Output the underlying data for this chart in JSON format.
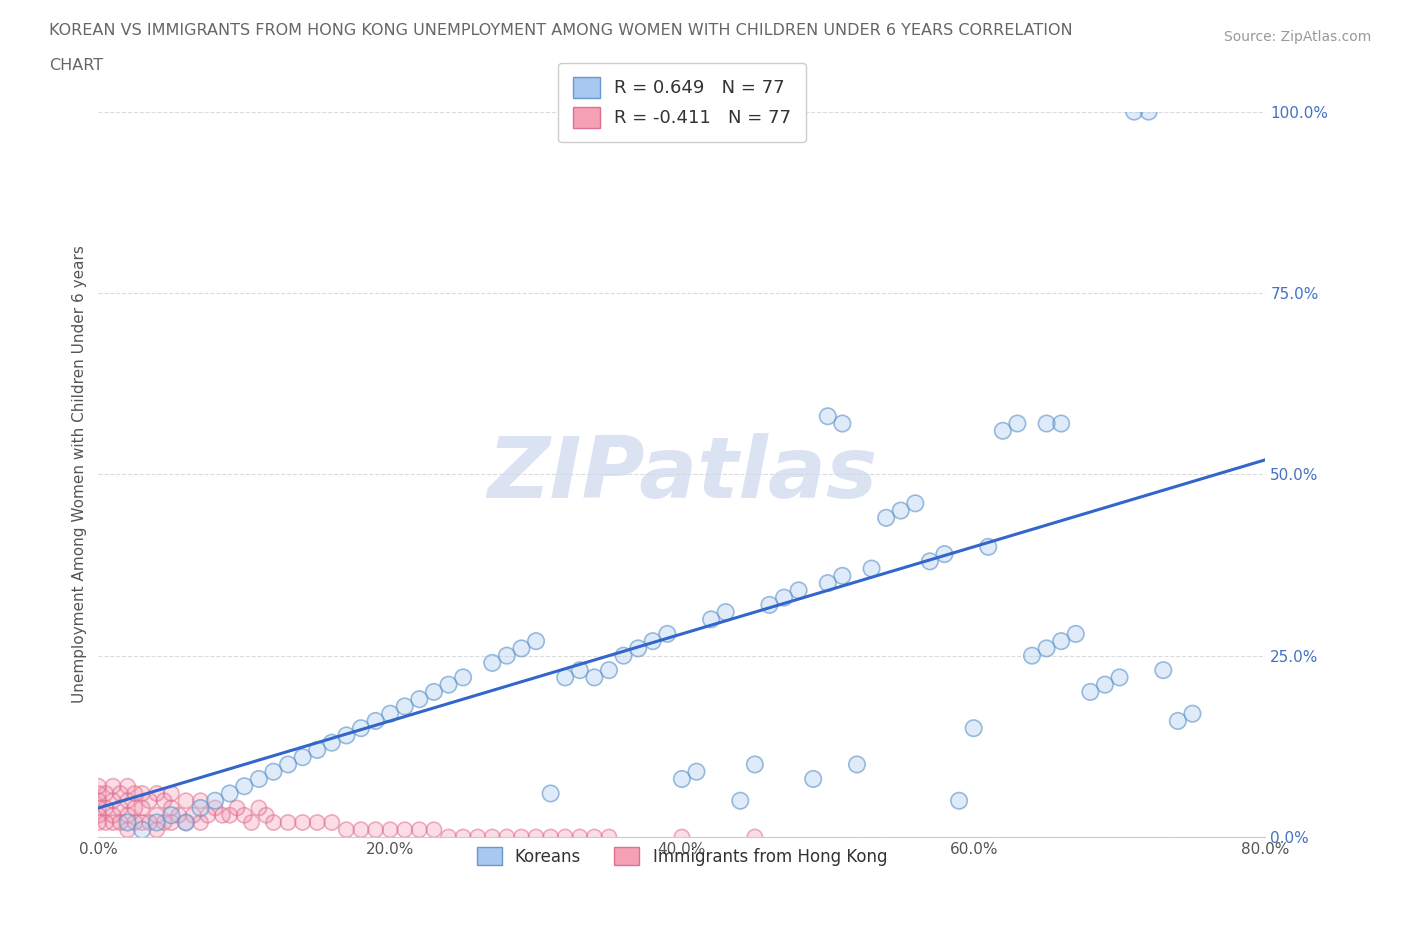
{
  "title_line1": "KOREAN VS IMMIGRANTS FROM HONG KONG UNEMPLOYMENT AMONG WOMEN WITH CHILDREN UNDER 6 YEARS CORRELATION",
  "title_line2": "CHART",
  "source": "Source: ZipAtlas.com",
  "ylabel": "Unemployment Among Women with Children Under 6 years",
  "xlim": [
    0.0,
    0.8
  ],
  "ylim": [
    0.0,
    1.0
  ],
  "xticks": [
    0.0,
    0.2,
    0.4,
    0.6,
    0.8
  ],
  "xtick_labels": [
    "0.0%",
    "20.0%",
    "40.0%",
    "60.0%",
    "80.0%"
  ],
  "yticks": [
    0.0,
    0.25,
    0.5,
    0.75,
    1.0
  ],
  "ytick_labels": [
    "0.0%",
    "25.0%",
    "50.0%",
    "75.0%",
    "100.0%"
  ],
  "legend_korean_r": "R = 0.649",
  "legend_korean_n": "N = 77",
  "legend_hk_r": "R = -0.411",
  "legend_hk_n": "N = 77",
  "korean_color": "#a8c8f0",
  "korean_edge": "#6699cc",
  "hk_color": "#f4a0b5",
  "hk_edge": "#e07090",
  "trend_color": "#3366cc",
  "background_color": "#ffffff",
  "grid_color": "#cccccc",
  "title_color": "#666666",
  "ytick_color": "#4472c4",
  "xtick_color": "#555555",
  "trend_x": [
    0.0,
    0.8
  ],
  "trend_y": [
    0.04,
    0.52
  ],
  "watermark_text": "ZIPatlas",
  "watermark_color": "#ccd8ee",
  "korean_x": [
    0.02,
    0.03,
    0.04,
    0.05,
    0.06,
    0.07,
    0.08,
    0.09,
    0.1,
    0.11,
    0.12,
    0.13,
    0.14,
    0.15,
    0.16,
    0.17,
    0.18,
    0.19,
    0.2,
    0.21,
    0.22,
    0.23,
    0.24,
    0.25,
    0.27,
    0.28,
    0.29,
    0.3,
    0.31,
    0.32,
    0.33,
    0.34,
    0.35,
    0.36,
    0.37,
    0.38,
    0.39,
    0.4,
    0.41,
    0.42,
    0.43,
    0.44,
    0.45,
    0.46,
    0.47,
    0.48,
    0.49,
    0.5,
    0.51,
    0.52,
    0.53,
    0.54,
    0.55,
    0.56,
    0.57,
    0.58,
    0.59,
    0.6,
    0.61,
    0.62,
    0.63,
    0.64,
    0.65,
    0.66,
    0.67,
    0.68,
    0.69,
    0.7,
    0.71,
    0.72,
    0.73,
    0.74,
    0.75,
    0.5,
    0.51,
    0.65,
    0.66
  ],
  "korean_y": [
    0.02,
    0.01,
    0.02,
    0.03,
    0.02,
    0.04,
    0.05,
    0.06,
    0.07,
    0.08,
    0.09,
    0.1,
    0.11,
    0.12,
    0.13,
    0.14,
    0.15,
    0.16,
    0.17,
    0.18,
    0.19,
    0.2,
    0.21,
    0.22,
    0.24,
    0.25,
    0.26,
    0.27,
    0.06,
    0.22,
    0.23,
    0.22,
    0.23,
    0.25,
    0.26,
    0.27,
    0.28,
    0.08,
    0.09,
    0.3,
    0.31,
    0.05,
    0.1,
    0.32,
    0.33,
    0.34,
    0.08,
    0.35,
    0.36,
    0.1,
    0.37,
    0.44,
    0.45,
    0.46,
    0.38,
    0.39,
    0.05,
    0.15,
    0.4,
    0.56,
    0.57,
    0.25,
    0.26,
    0.27,
    0.28,
    0.2,
    0.21,
    0.22,
    1.0,
    1.0,
    0.23,
    0.16,
    0.17,
    0.58,
    0.57,
    0.57,
    0.57
  ],
  "hk_x": [
    0.0,
    0.0,
    0.0,
    0.0,
    0.0,
    0.0,
    0.005,
    0.005,
    0.005,
    0.01,
    0.01,
    0.01,
    0.01,
    0.015,
    0.015,
    0.015,
    0.02,
    0.02,
    0.02,
    0.02,
    0.025,
    0.025,
    0.025,
    0.03,
    0.03,
    0.03,
    0.035,
    0.035,
    0.04,
    0.04,
    0.04,
    0.045,
    0.045,
    0.05,
    0.05,
    0.05,
    0.055,
    0.06,
    0.06,
    0.065,
    0.07,
    0.07,
    0.075,
    0.08,
    0.085,
    0.09,
    0.095,
    0.1,
    0.105,
    0.11,
    0.115,
    0.12,
    0.13,
    0.14,
    0.15,
    0.16,
    0.17,
    0.18,
    0.19,
    0.2,
    0.21,
    0.22,
    0.23,
    0.24,
    0.25,
    0.26,
    0.27,
    0.28,
    0.29,
    0.3,
    0.31,
    0.32,
    0.33,
    0.34,
    0.35,
    0.4,
    0.45
  ],
  "hk_y": [
    0.02,
    0.03,
    0.04,
    0.05,
    0.06,
    0.07,
    0.02,
    0.04,
    0.06,
    0.02,
    0.03,
    0.05,
    0.07,
    0.02,
    0.04,
    0.06,
    0.01,
    0.03,
    0.05,
    0.07,
    0.02,
    0.04,
    0.06,
    0.02,
    0.04,
    0.06,
    0.02,
    0.05,
    0.01,
    0.03,
    0.06,
    0.02,
    0.05,
    0.02,
    0.04,
    0.06,
    0.03,
    0.02,
    0.05,
    0.03,
    0.02,
    0.05,
    0.03,
    0.04,
    0.03,
    0.03,
    0.04,
    0.03,
    0.02,
    0.04,
    0.03,
    0.02,
    0.02,
    0.02,
    0.02,
    0.02,
    0.01,
    0.01,
    0.01,
    0.01,
    0.01,
    0.01,
    0.01,
    0.0,
    0.0,
    0.0,
    0.0,
    0.0,
    0.0,
    0.0,
    0.0,
    0.0,
    0.0,
    0.0,
    0.0,
    0.0,
    0.0
  ]
}
